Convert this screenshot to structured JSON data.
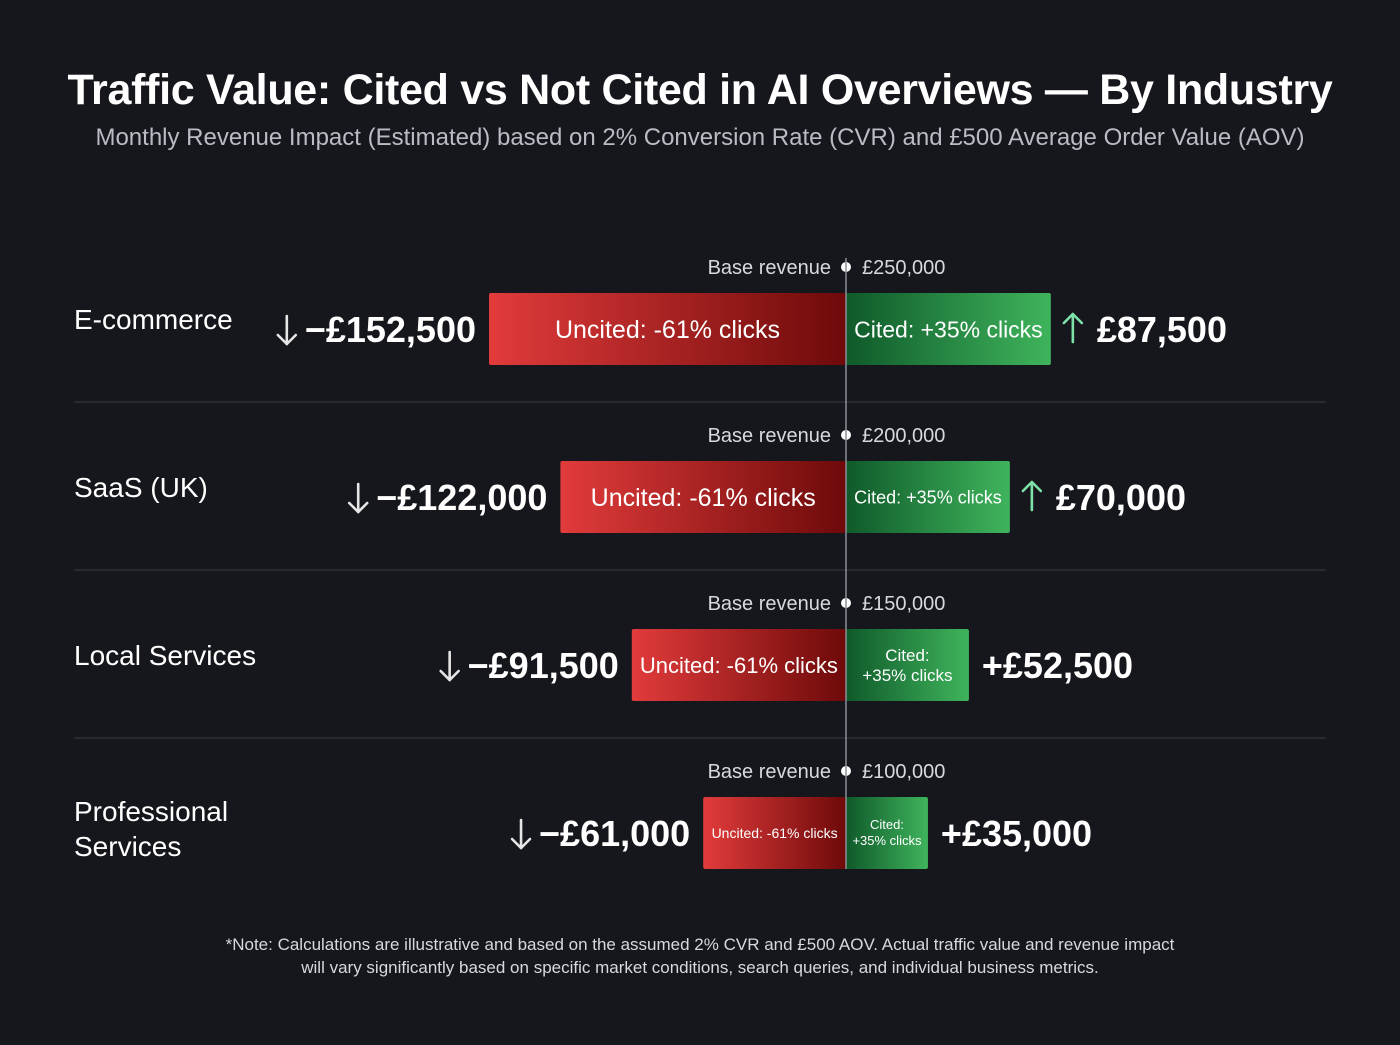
{
  "chart_data": {
    "type": "bar",
    "title": "Traffic Value: Cited vs Not Cited in AI Overviews — By Industry",
    "subtitle": "Monthly Revenue Impact (Estimated) based on 2% Conversion Rate (CVR) and £500 Average Order Value (AOV)",
    "base_label": "Base revenue",
    "categories": [
      {
        "name": "E-commerce",
        "base_value": 250000,
        "base_label": "£250,000",
        "uncited_value": -152500,
        "uncited_label": "−£152,500",
        "uncited_bar_text": "Uncited: -61% clicks",
        "cited_value": 87500,
        "cited_label": "£87,500",
        "cited_bar_text": "Cited: +35% clicks",
        "cited_arrow": true
      },
      {
        "name": "SaaS (UK)",
        "base_value": 200000,
        "base_label": "£200,000",
        "uncited_value": -122000,
        "uncited_label": "−£122,000",
        "uncited_bar_text": "Uncited: -61% clicks",
        "cited_value": 70000,
        "cited_label": "£70,000",
        "cited_bar_text": "Cited: +35% clicks",
        "cited_arrow": true
      },
      {
        "name": "Local Services",
        "base_value": 150000,
        "base_label": "£150,000",
        "uncited_value": -91500,
        "uncited_label": "−£91,500",
        "uncited_bar_text": "Uncited: -61% clicks",
        "cited_value": 52500,
        "cited_label": "+£52,500",
        "cited_bar_text": "Cited: +35% clicks",
        "cited_arrow": false
      },
      {
        "name": "Professional Services",
        "base_value": 100000,
        "base_label": "£100,000",
        "uncited_value": -61000,
        "uncited_label": "−£61,000",
        "uncited_bar_text": "Uncited: -61% clicks",
        "cited_value": 35000,
        "cited_label": "+£35,000",
        "cited_bar_text": "Cited: +35% clicks",
        "cited_arrow": false
      }
    ]
  },
  "note": {
    "line1": "*Note: Calculations are illustrative and based on the assumed 2% CVR and £500 AOV. Actual traffic value and revenue impact",
    "line2": "will vary significantly based on specific market conditions, search queries, and individual business metrics."
  },
  "colors": {
    "background": "#15171c",
    "uncited_start": "#e23b3b",
    "uncited_end": "#6e0a0a",
    "cited_start": "#0f5a2a",
    "cited_end": "#3fb45c",
    "up_arrow": "#7ee2a8"
  }
}
